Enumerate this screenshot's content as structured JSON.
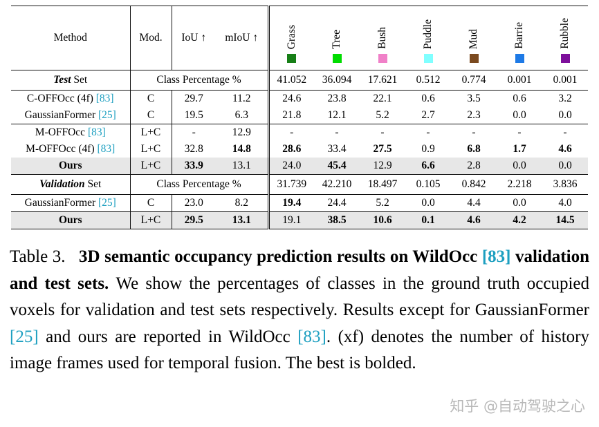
{
  "colors": {
    "cite": "#1d9fc0",
    "highlight_row": "#e7e7e7"
  },
  "table": {
    "header": {
      "method": "Method",
      "mod": "Mod.",
      "iou": "IoU ↑",
      "miou": "mIoU ↑"
    },
    "classes": [
      {
        "label": "Grass",
        "color": "#177f17"
      },
      {
        "label": "Tree",
        "color": "#00dc00"
      },
      {
        "label": "Bush",
        "color": "#f080c8"
      },
      {
        "label": "Puddle",
        "color": "#80ffff"
      },
      {
        "label": "Mud",
        "color": "#7b4a1f"
      },
      {
        "label": "Barrie",
        "color": "#1e7ae6"
      },
      {
        "label": "Rubble",
        "color": "#7d0f9b"
      }
    ],
    "sections": [
      {
        "set_label_em": "Test",
        "set_label_rest": " Set",
        "percent_label": "Class Percentage %",
        "percentages": [
          "41.052",
          "36.094",
          "17.621",
          "0.512",
          "0.774",
          "0.001",
          "0.001"
        ],
        "groups": [
          [
            {
              "method": "C-OFFOcc (4f)",
              "cite": "[83]",
              "mod": "C",
              "iou": "29.7",
              "miou": "11.2",
              "cells": [
                "24.6",
                "23.8",
                "22.1",
                "0.6",
                "3.5",
                "0.6",
                "3.2"
              ]
            },
            {
              "method": "GaussianFormer",
              "cite": "[25]",
              "mod": "C",
              "iou": "19.5",
              "miou": "6.3",
              "cells": [
                "21.8",
                "12.1",
                "5.2",
                "2.7",
                "2.3",
                "0.0",
                "0.0"
              ]
            }
          ],
          [
            {
              "method": "M-OFFOcc",
              "cite": "[83]",
              "mod": "L+C",
              "iou": "-",
              "miou": "12.9",
              "cells": [
                "-",
                "-",
                "-",
                "-",
                "-",
                "-",
                "-"
              ]
            },
            {
              "method": "M-OFFOcc (4f)",
              "cite": "[83]",
              "mod": "L+C",
              "iou": "32.8",
              "miou": "**14.8**",
              "cells": [
                "**28.6**",
                "33.4",
                "**27.5**",
                "0.9",
                "**6.8**",
                "**1.7**",
                "**4.6**"
              ]
            },
            {
              "method": "**Ours**",
              "mod": "L+C",
              "iou": "**33.9**",
              "miou": "13.1",
              "highlight": true,
              "cells": [
                "24.0",
                "**45.4**",
                "12.9",
                "**6.6**",
                "2.8",
                "0.0",
                "0.0"
              ]
            }
          ]
        ]
      },
      {
        "set_label_em": "Validation",
        "set_label_rest": " Set",
        "percent_label": "Class Percentage %",
        "percentages": [
          "31.739",
          "42.210",
          "18.497",
          "0.105",
          "0.842",
          "2.218",
          "3.836"
        ],
        "groups": [
          [
            {
              "method": "GaussianFormer",
              "cite": "[25]",
              "mod": "C",
              "iou": "23.0",
              "miou": "8.2",
              "cells": [
                "**19.4**",
                "24.4",
                "5.2",
                "0.0",
                "4.4",
                "0.0",
                "4.0"
              ]
            }
          ],
          [
            {
              "method": "**Ours**",
              "mod": "L+C",
              "iou": "**29.5**",
              "miou": "**13.1**",
              "highlight": true,
              "cells": [
                "19.1",
                "**38.5**",
                "**10.6**",
                "**0.1**",
                "**4.6**",
                "**4.2**",
                "**14.5**"
              ]
            }
          ]
        ]
      }
    ]
  },
  "caption": {
    "segments": [
      {
        "text": "Table 3.   "
      },
      {
        "text": "3D semantic occupancy prediction results on WildOcc ",
        "bold": true
      },
      {
        "text": "[83]",
        "bold": true,
        "cite": true
      },
      {
        "text": " validation and test sets. ",
        "bold": true
      },
      {
        "text": "We show the percentages of classes in the ground truth occupied voxels for validation and test sets respectively. Results except for GaussianFormer "
      },
      {
        "text": "[25]",
        "cite": true
      },
      {
        "text": " and ours are reported in WildOcc "
      },
      {
        "text": "[83]",
        "cite": true
      },
      {
        "text": ". (xf) denotes the number of history image frames used for temporal fusion. The best is bolded."
      }
    ]
  },
  "watermark": {
    "text": "知乎 @自动驾驶之心"
  }
}
